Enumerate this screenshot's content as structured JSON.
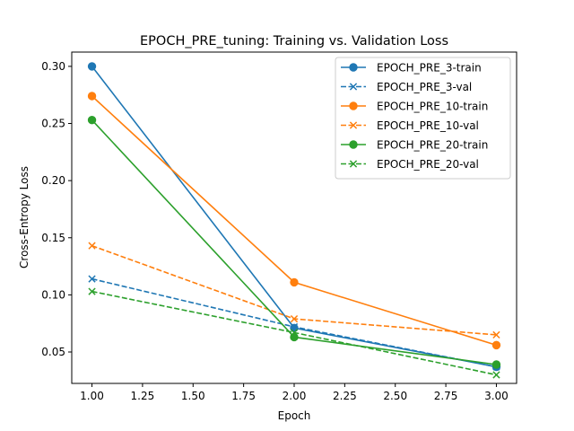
{
  "chart_data": {
    "type": "line",
    "title": "EPOCH_PRE_tuning: Training vs. Validation Loss",
    "xlabel": "Epoch",
    "ylabel": "Cross-Entropy Loss",
    "xlim": [
      0.9,
      3.1
    ],
    "ylim": [
      0.0225,
      0.3125
    ],
    "xticks": [
      1.0,
      1.25,
      1.5,
      1.75,
      2.0,
      2.25,
      2.5,
      2.75,
      3.0
    ],
    "xtick_labels": [
      "1.00",
      "1.25",
      "1.50",
      "1.75",
      "2.00",
      "2.25",
      "2.50",
      "2.75",
      "3.00"
    ],
    "yticks": [
      0.05,
      0.1,
      0.15,
      0.2,
      0.25,
      0.3
    ],
    "ytick_labels": [
      "0.05",
      "0.10",
      "0.15",
      "0.20",
      "0.25",
      "0.30"
    ],
    "grid": false,
    "legend_position": "top-right",
    "x": [
      1,
      2,
      3
    ],
    "series": [
      {
        "name": "EPOCH_PRE_3-train",
        "values": [
          0.3,
          0.071,
          0.037
        ],
        "color": "#1f77b4",
        "style": "solid",
        "marker": "circle"
      },
      {
        "name": "EPOCH_PRE_3-val",
        "values": [
          0.114,
          0.072,
          0.037
        ],
        "color": "#1f77b4",
        "style": "dashed",
        "marker": "x"
      },
      {
        "name": "EPOCH_PRE_10-train",
        "values": [
          0.274,
          0.111,
          0.056
        ],
        "color": "#ff7f0e",
        "style": "solid",
        "marker": "circle"
      },
      {
        "name": "EPOCH_PRE_10-val",
        "values": [
          0.143,
          0.079,
          0.065
        ],
        "color": "#ff7f0e",
        "style": "dashed",
        "marker": "x"
      },
      {
        "name": "EPOCH_PRE_20-train",
        "values": [
          0.253,
          0.063,
          0.039
        ],
        "color": "#2ca02c",
        "style": "solid",
        "marker": "circle"
      },
      {
        "name": "EPOCH_PRE_20-val",
        "values": [
          0.103,
          0.067,
          0.03
        ],
        "color": "#2ca02c",
        "style": "dashed",
        "marker": "x"
      }
    ]
  }
}
